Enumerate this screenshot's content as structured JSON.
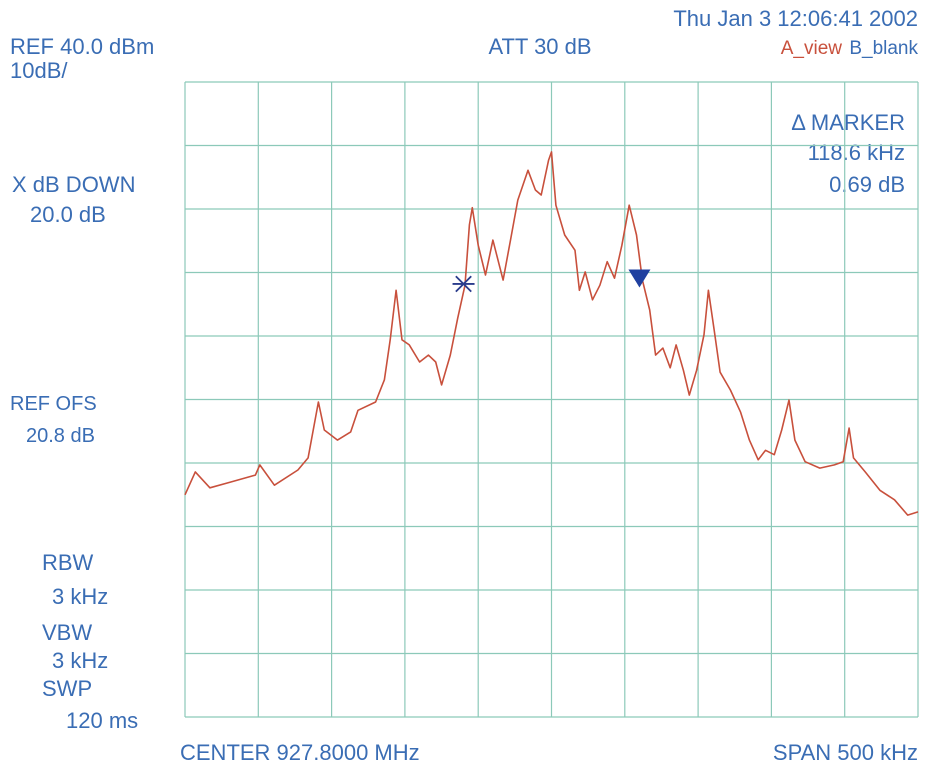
{
  "chart_data": {
    "type": "line",
    "timestamp": "Thu Jan  3 12:06:41 2002",
    "ref_level": "REF 40.0 dBm",
    "scale": "10dB/",
    "attenuation": "ATT 30 dB",
    "trace_a": "A_view",
    "trace_b": "B_blank",
    "marker_title": "Δ MARKER",
    "marker_freq": "118.6 kHz",
    "marker_level": "0.69 dB",
    "xdb_title": "X dB DOWN",
    "xdb_value": "20.0 dB",
    "ref_ofs_title": "REF OFS",
    "ref_ofs_value": "20.8 dB",
    "rbw_title": "RBW",
    "rbw_value": "3 kHz",
    "vbw_title": "VBW",
    "vbw_value": "3 kHz",
    "swp_title": "SWP",
    "swp_value": "120 ms",
    "center": "CENTER 927.8000 MHz",
    "span": "SPAN 500 kHz",
    "xlim": [
      927.55,
      928.05
    ],
    "ylim": [
      -60,
      40
    ],
    "grid": {
      "x_divisions": 10,
      "y_divisions": 10,
      "color": "#8cc9b9"
    },
    "series": [
      {
        "name": "A_view",
        "color": "#c8503c",
        "x": [
          927.55,
          927.557,
          927.567,
          927.581,
          927.598,
          927.601,
          927.611,
          927.627,
          927.634,
          927.641,
          927.645,
          927.654,
          927.663,
          927.668,
          927.68,
          927.686,
          927.69,
          927.694,
          927.698,
          927.703,
          927.71,
          927.716,
          927.721,
          927.725,
          927.731,
          927.736,
          927.741,
          927.744,
          927.746,
          927.75,
          927.755,
          927.76,
          927.767,
          927.772,
          927.777,
          927.784,
          927.789,
          927.793,
          927.798,
          927.8,
          927.803,
          927.809,
          927.816,
          927.819,
          927.823,
          927.828,
          927.833,
          927.838,
          927.843,
          927.848,
          927.853,
          927.858,
          927.862,
          927.867,
          927.871,
          927.876,
          927.881,
          927.885,
          927.89,
          927.894,
          927.899,
          927.904,
          927.907,
          927.911,
          927.915,
          927.922,
          927.929,
          927.935,
          927.941,
          927.946,
          927.952,
          927.957,
          927.962,
          927.966,
          927.973,
          927.983,
          927.993,
          927.999,
          928.003,
          928.006,
          928.014,
          928.024,
          928.034,
          928.043,
          928.05
        ],
        "values": [
          -25.0,
          -21.4,
          -23.9,
          -23.0,
          -21.9,
          -20.3,
          -23.5,
          -21.1,
          -19.2,
          -10.4,
          -14.8,
          -16.4,
          -15.1,
          -11.7,
          -10.4,
          -6.9,
          -0.6,
          7.2,
          -0.6,
          -1.4,
          -4.1,
          -3.0,
          -4.1,
          -7.7,
          -3.0,
          2.8,
          8.0,
          17.5,
          20.2,
          14.3,
          9.6,
          15.1,
          8.8,
          15.1,
          21.4,
          26.1,
          23.0,
          22.2,
          27.7,
          29.0,
          20.6,
          15.9,
          13.5,
          7.2,
          10.1,
          5.7,
          8.0,
          11.7,
          9.1,
          14.3,
          20.6,
          15.9,
          8.8,
          4.1,
          -3.0,
          -1.9,
          -5.0,
          -1.4,
          -5.4,
          -9.3,
          -5.4,
          0.2,
          7.2,
          0.9,
          -5.7,
          -8.5,
          -12.0,
          -16.4,
          -19.5,
          -18.0,
          -18.7,
          -14.8,
          -10.1,
          -16.4,
          -19.8,
          -20.8,
          -20.3,
          -19.8,
          -14.5,
          -19.2,
          -21.4,
          -24.3,
          -25.8,
          -28.2,
          -27.7
        ]
      }
    ],
    "markers": [
      {
        "x": 927.74,
        "y": 8.2,
        "shape": "asterisk",
        "color": "#2a3c8c"
      },
      {
        "x": 927.86,
        "y": 8.9,
        "shape": "triangle",
        "color": "#2040a0"
      }
    ]
  }
}
